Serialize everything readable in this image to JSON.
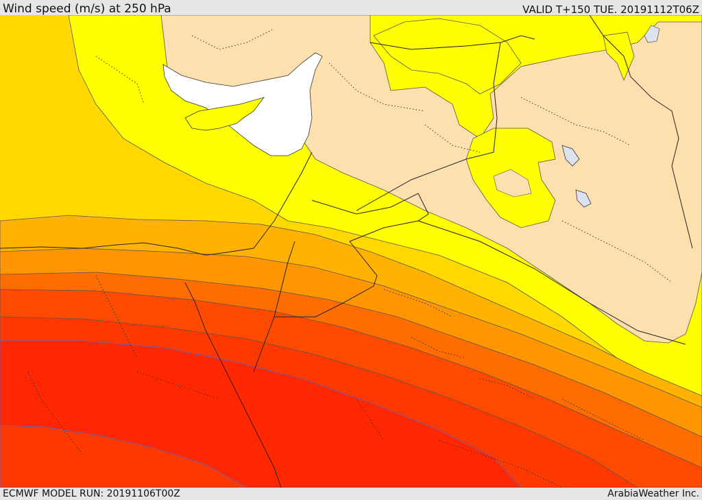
{
  "header": {
    "title": "Wind speed (m/s) at 250 hPa",
    "valid_time": "VALID T+150 TUE. 20191112T06Z"
  },
  "footer": {
    "model_run": "ECMWF MODEL RUN: 20191106T00Z",
    "credit": "ArabiaWeather Inc."
  },
  "map": {
    "field": "wind speed at 250 hPa",
    "colors": {
      "land_below_threshold": "#fde0ae",
      "band_1": "#ffff00",
      "band_2": "#ffd800",
      "band_3": "#ffb300",
      "band_4": "#ff9500",
      "band_5": "#ff6c00",
      "band_6": "#ff4a00",
      "band_7": "#ff2600",
      "sea_uncovered": "#ffffff",
      "lakes": "#dde3ee"
    }
  }
}
